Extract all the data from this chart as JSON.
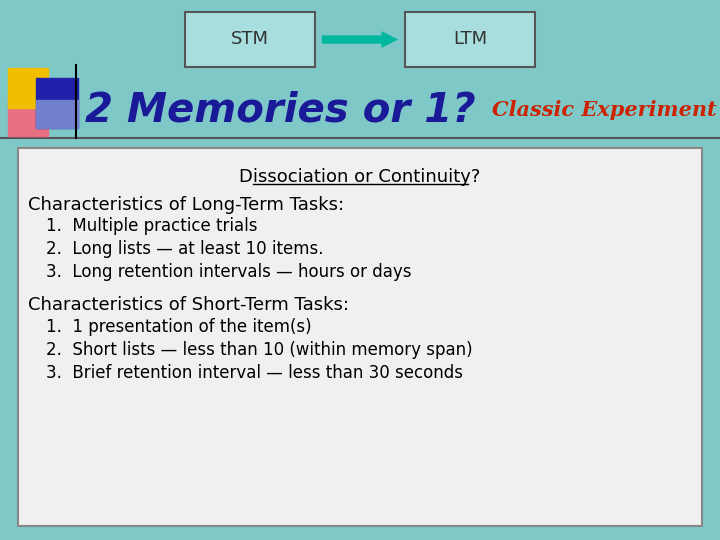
{
  "bg_color": "#7ec8c8",
  "box_color": "#a8dede",
  "box_border": "#555555",
  "stm_text": "STM",
  "ltm_text": "LTM",
  "arrow_color": "#00b8a0",
  "title_text": "2 Memories or 1?",
  "title_color": "#1a1a99",
  "classic_text": "Classic Experiment",
  "classic_color": "#cc2200",
  "content_bg": "#f0f0f0",
  "content_border": "#888888",
  "underline_text": "Dissociation or Continuity?",
  "lt_header": "Characteristics of Long-Term Tasks:",
  "lt_items": [
    "Multiple practice trials",
    "Long lists — at least 10 items.",
    "Long retention intervals — hours or days"
  ],
  "st_header": "Characteristics of Short-Term Tasks:",
  "st_items": [
    "1 presentation of the item(s)",
    "Short lists — less than 10 (within memory span)",
    "Brief retention interval — less than 30 seconds"
  ],
  "line_color": "#555555"
}
